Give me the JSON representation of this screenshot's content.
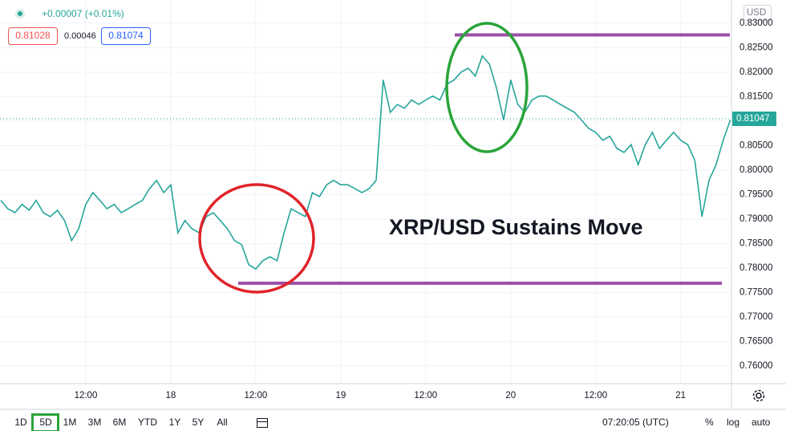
{
  "header": {
    "change": "+0.00007 (+0.01%)",
    "bid": "0.81028",
    "spread": "0.00046",
    "ask": "0.81074",
    "currency": "USD"
  },
  "toolbar": {
    "ranges": [
      "1D",
      "5D",
      "1M",
      "3M",
      "6M",
      "YTD",
      "1Y",
      "5Y",
      "All"
    ],
    "time": "07:20:05 (UTC)",
    "percent": "%",
    "log": "log",
    "auto": "auto"
  },
  "chart_data": {
    "type": "line",
    "annotation": "XRP/USD Sustains Move",
    "color": "#26a69a",
    "grid": true,
    "categories": [
      null,
      null,
      null,
      null,
      null,
      null,
      null,
      null,
      null,
      null,
      null,
      null,
      "12:00",
      null,
      null,
      null,
      null,
      null,
      null,
      null,
      null,
      null,
      null,
      null,
      "18",
      null,
      null,
      null,
      null,
      null,
      null,
      null,
      null,
      null,
      null,
      null,
      "12:00",
      null,
      null,
      null,
      null,
      null,
      null,
      null,
      null,
      null,
      null,
      null,
      "19",
      null,
      null,
      null,
      null,
      null,
      null,
      null,
      null,
      null,
      null,
      null,
      "12:00",
      null,
      null,
      null,
      null,
      null,
      null,
      null,
      null,
      null,
      null,
      null,
      "20",
      null,
      null,
      null,
      null,
      null,
      null,
      null,
      null,
      null,
      null,
      null,
      "12:00",
      null,
      null,
      null,
      null,
      null,
      null,
      null,
      null,
      null,
      null,
      null,
      "21",
      null,
      null,
      null,
      null,
      null,
      null,
      null
    ],
    "values": [
      0.7938,
      0.7921,
      0.7913,
      0.793,
      0.7918,
      0.7938,
      0.7913,
      0.7905,
      0.7918,
      0.7897,
      0.7856,
      0.788,
      0.793,
      0.7954,
      0.7938,
      0.7921,
      0.793,
      0.7913,
      0.7921,
      0.793,
      0.7938,
      0.7962,
      0.7979,
      0.7954,
      0.797,
      0.7872,
      0.7897,
      0.788,
      0.7872,
      0.7905,
      0.7913,
      0.7897,
      0.788,
      0.7856,
      0.7848,
      0.7807,
      0.7798,
      0.7815,
      0.7823,
      0.7815,
      0.7872,
      0.7921,
      0.7913,
      0.7905,
      0.7954,
      0.7946,
      0.797,
      0.7979,
      0.797,
      0.797,
      0.7962,
      0.7954,
      0.7962,
      0.7979,
      0.8184,
      0.8118,
      0.8134,
      0.8126,
      0.8143,
      0.8134,
      0.8143,
      0.8151,
      0.8143,
      0.8175,
      0.8184,
      0.82,
      0.8208,
      0.8192,
      0.8233,
      0.8216,
      0.8167,
      0.8102,
      0.8184,
      0.8134,
      0.8118,
      0.8143,
      0.8151,
      0.8151,
      0.8143,
      0.8134,
      0.8126,
      0.8118,
      0.8102,
      0.8085,
      0.8077,
      0.8061,
      0.8069,
      0.8044,
      0.8036,
      0.8052,
      0.8011,
      0.8052,
      0.8077,
      0.8044,
      0.8061,
      0.8077,
      0.8061,
      0.8052,
      0.802,
      0.7905,
      0.7979,
      0.8011,
      0.8061,
      0.8102
    ],
    "last_price": 0.81047,
    "levels": [
      0.8276,
      0.7769
    ],
    "level_color": "#9c4fa6",
    "ylim": [
      0.7564,
      0.8339
    ],
    "yticks": [
      {
        "value": 0.76,
        "label": "0.76000"
      },
      {
        "value": 0.765,
        "label": "0.76500"
      },
      {
        "value": 0.77,
        "label": "0.77000"
      },
      {
        "value": 0.775,
        "label": "0.77500"
      },
      {
        "value": 0.78,
        "label": "0.78000"
      },
      {
        "value": 0.785,
        "label": "0.78500"
      },
      {
        "value": 0.79,
        "label": "0.79000"
      },
      {
        "value": 0.795,
        "label": "0.79500"
      },
      {
        "value": 0.8,
        "label": "0.80000"
      },
      {
        "value": 0.805,
        "label": "0.80500"
      },
      {
        "value": 0.81,
        "label": "0.81000"
      },
      {
        "value": 0.815,
        "label": "0.81500"
      },
      {
        "value": 0.82,
        "label": "0.82000"
      },
      {
        "value": 0.825,
        "label": "0.82500"
      },
      {
        "value": 0.83,
        "label": "0.83000"
      }
    ]
  }
}
